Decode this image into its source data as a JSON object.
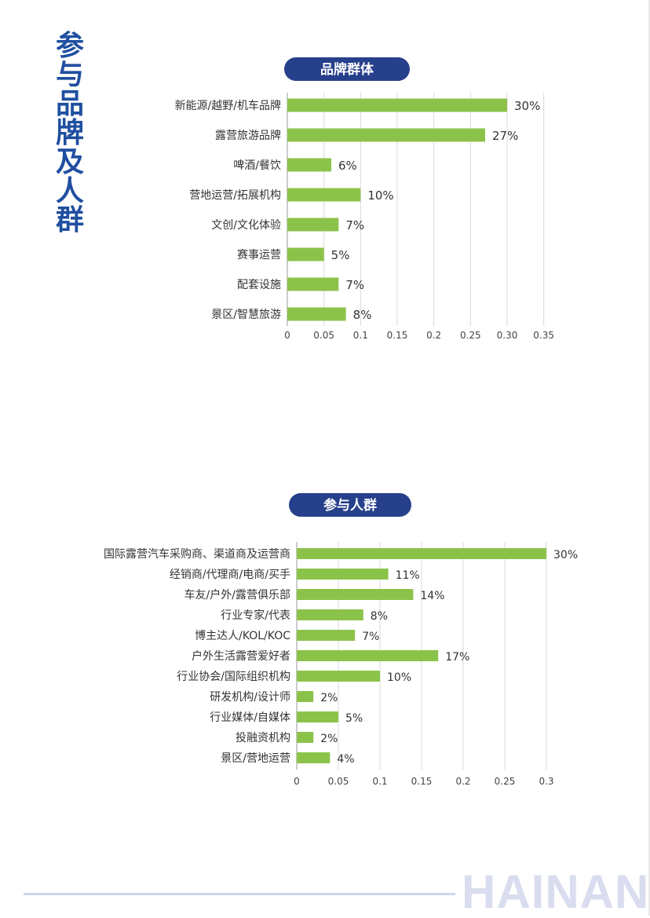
{
  "side_title": [
    "参",
    "与",
    "品",
    "牌",
    "及",
    "人",
    "群"
  ],
  "footer_logo": "HAINAN",
  "colors": {
    "bar": "#8bc34a",
    "pill": "#27408b",
    "title": "#1f4fa0",
    "grid": "#d9d9d9"
  },
  "chart_data": [
    {
      "type": "bar",
      "orientation": "horizontal",
      "title": "品牌群体",
      "categories": [
        "新能源/越野/机车品牌",
        "露营旅游品牌",
        "啤酒/餐饮",
        "营地运营/拓展机构",
        "文创/文化体验",
        "赛事运营",
        "配套设施",
        "景区/智慧旅游"
      ],
      "values": [
        0.3,
        0.27,
        0.06,
        0.1,
        0.07,
        0.05,
        0.07,
        0.08
      ],
      "data_labels": [
        "30%",
        "27%",
        "6%",
        "10%",
        "7%",
        "5%",
        "7%",
        "8%"
      ],
      "xlim": [
        0,
        0.35
      ],
      "xticks": [
        "0",
        "0.05",
        "0.1",
        "0.15",
        "0.2",
        "0.25",
        "0.30",
        "0.35"
      ],
      "grid": "vertical"
    },
    {
      "type": "bar",
      "orientation": "horizontal",
      "title": "参与人群",
      "categories": [
        "国际露营汽车采购商、渠道商及运营商",
        "经销商/代理商/电商/买手",
        "车友/户外/露营俱乐部",
        "行业专家/代表",
        "博主达人/KOL/KOC",
        "户外生活露营爱好者",
        "行业协会/国际组织机构",
        "研发机构/设计师",
        "行业媒体/自媒体",
        "投融资机构",
        "景区/营地运营"
      ],
      "values": [
        0.3,
        0.11,
        0.14,
        0.08,
        0.07,
        0.17,
        0.1,
        0.02,
        0.05,
        0.02,
        0.04
      ],
      "data_labels": [
        "30%",
        "11%",
        "14%",
        "8%",
        "7%",
        "17%",
        "10%",
        "2%",
        "5%",
        "2%",
        "4%"
      ],
      "xlim": [
        0,
        0.3
      ],
      "xticks": [
        "0",
        "0.05",
        "0.1",
        "0.15",
        "0.2",
        "0.25",
        "0.3"
      ],
      "grid": "vertical"
    }
  ]
}
